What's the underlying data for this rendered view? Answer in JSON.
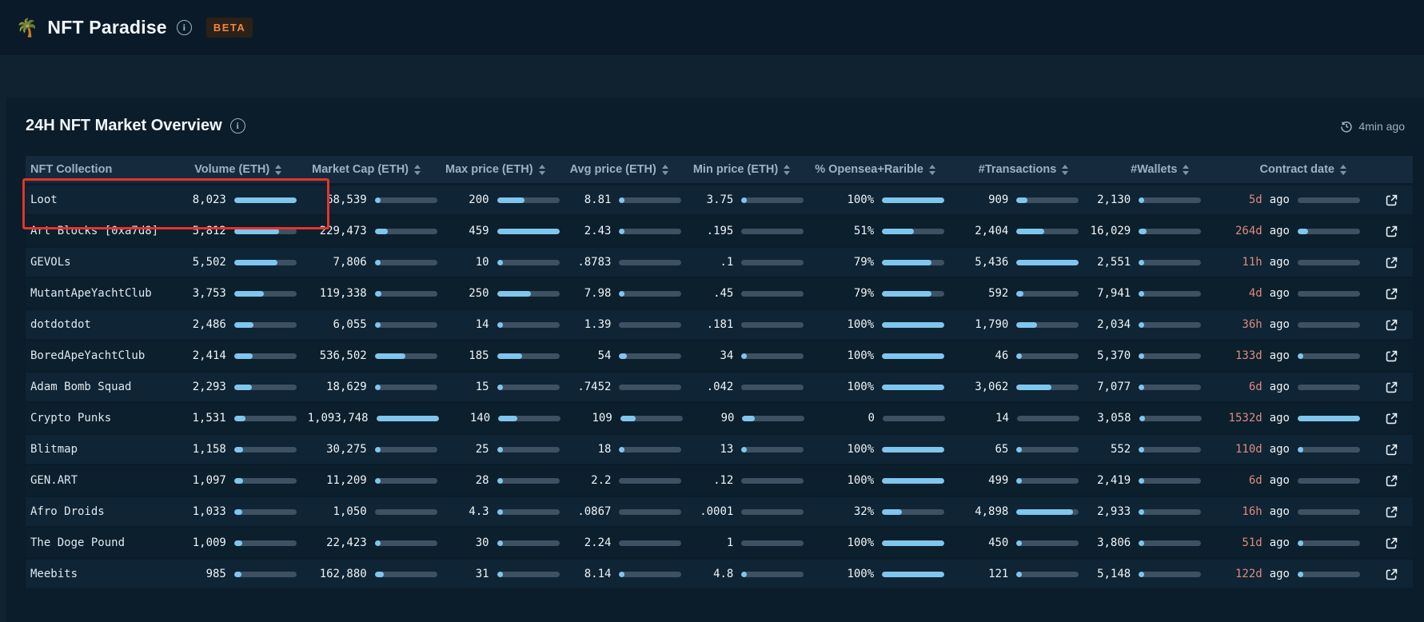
{
  "app": {
    "logo": "🌴",
    "title": "NFT Paradise",
    "beta_label": "BETA"
  },
  "panel": {
    "title": "24H NFT Market Overview",
    "updated": "4min ago"
  },
  "colors": {
    "page_bg": "#10212f",
    "topbar_bg": "#0b1a28",
    "card_bg": "#0b1c2a",
    "header_bg": "#152a3c",
    "row_odd": "#0f2434",
    "row_even": "#0c1f2c",
    "bar_fill": "#7fc6ee",
    "bar_track": "#3d5162",
    "header_text": "#9db2c3",
    "value_text": "#eef4f8",
    "name_text": "#dfe9f1",
    "date_red": "#de8a80",
    "accent_red": "#e5342b",
    "beta_text": "#ef8640",
    "beta_bg": "#2b2118"
  },
  "table": {
    "columns": [
      {
        "key": "name",
        "label": "NFT Collection",
        "sortable": false
      },
      {
        "key": "volume",
        "label": "Volume (ETH)",
        "sortable": true
      },
      {
        "key": "market_cap",
        "label": "Market Cap (ETH)",
        "sortable": true
      },
      {
        "key": "max_price",
        "label": "Max price (ETH)",
        "sortable": true
      },
      {
        "key": "avg_price",
        "label": "Avg price (ETH)",
        "sortable": true
      },
      {
        "key": "min_price",
        "label": "Min price (ETH)",
        "sortable": true
      },
      {
        "key": "opensea_rarible",
        "label": "% Opensea+Rarible",
        "sortable": true
      },
      {
        "key": "transactions",
        "label": "#Transactions",
        "sortable": true
      },
      {
        "key": "wallets",
        "label": "#Wallets",
        "sortable": true
      },
      {
        "key": "contract_date",
        "label": "Contract date",
        "sortable": true
      }
    ],
    "metric_keys": [
      "volume",
      "market_cap",
      "max_price",
      "avg_price",
      "min_price",
      "opensea_rarible",
      "transactions",
      "wallets"
    ],
    "rows": [
      {
        "name": "Loot",
        "volume": {
          "v": "8,023",
          "bar": 100
        },
        "market_cap": {
          "v": "68,539",
          "bar": 6
        },
        "max_price": {
          "v": "200",
          "bar": 44
        },
        "avg_price": {
          "v": "8.81",
          "bar": 2
        },
        "min_price": {
          "v": "3.75",
          "bar": 1
        },
        "opensea_rarible": {
          "v": "100%",
          "bar": 100
        },
        "transactions": {
          "v": "909",
          "bar": 17
        },
        "wallets": {
          "v": "2,130",
          "bar": 2
        },
        "contract_date": {
          "v": "5d",
          "word": "ago",
          "bar": 0
        }
      },
      {
        "name": "Art Blocks [0xa7d8]",
        "volume": {
          "v": "5,812",
          "bar": 72
        },
        "market_cap": {
          "v": "229,473",
          "bar": 21
        },
        "max_price": {
          "v": "459",
          "bar": 100
        },
        "avg_price": {
          "v": "2.43",
          "bar": 1
        },
        "min_price": {
          "v": ".195",
          "bar": 0
        },
        "opensea_rarible": {
          "v": "51%",
          "bar": 51
        },
        "transactions": {
          "v": "2,404",
          "bar": 44
        },
        "wallets": {
          "v": "16,029",
          "bar": 12
        },
        "contract_date": {
          "v": "264d",
          "word": "ago",
          "bar": 17
        }
      },
      {
        "name": "GEVOLs",
        "volume": {
          "v": "5,502",
          "bar": 69
        },
        "market_cap": {
          "v": "7,806",
          "bar": 1
        },
        "max_price": {
          "v": "10",
          "bar": 2
        },
        "avg_price": {
          "v": ".8783",
          "bar": 0
        },
        "min_price": {
          "v": ".1",
          "bar": 0
        },
        "opensea_rarible": {
          "v": "79%",
          "bar": 79
        },
        "transactions": {
          "v": "5,436",
          "bar": 100
        },
        "wallets": {
          "v": "2,551",
          "bar": 2
        },
        "contract_date": {
          "v": "11h",
          "word": "ago",
          "bar": 0
        }
      },
      {
        "name": "MutantApeYachtClub",
        "volume": {
          "v": "3,753",
          "bar": 47
        },
        "market_cap": {
          "v": "119,338",
          "bar": 11
        },
        "max_price": {
          "v": "250",
          "bar": 54
        },
        "avg_price": {
          "v": "7.98",
          "bar": 2
        },
        "min_price": {
          "v": ".45",
          "bar": 0
        },
        "opensea_rarible": {
          "v": "79%",
          "bar": 79
        },
        "transactions": {
          "v": "592",
          "bar": 11
        },
        "wallets": {
          "v": "7,941",
          "bar": 6
        },
        "contract_date": {
          "v": "4d",
          "word": "ago",
          "bar": 0
        }
      },
      {
        "name": "dotdotdot",
        "volume": {
          "v": "2,486",
          "bar": 31
        },
        "market_cap": {
          "v": "6,055",
          "bar": 1
        },
        "max_price": {
          "v": "14",
          "bar": 3
        },
        "avg_price": {
          "v": "1.39",
          "bar": 0
        },
        "min_price": {
          "v": ".181",
          "bar": 0
        },
        "opensea_rarible": {
          "v": "100%",
          "bar": 100
        },
        "transactions": {
          "v": "1,790",
          "bar": 33
        },
        "wallets": {
          "v": "2,034",
          "bar": 2
        },
        "contract_date": {
          "v": "36h",
          "word": "ago",
          "bar": 0
        }
      },
      {
        "name": "BoredApeYachtClub",
        "volume": {
          "v": "2,414",
          "bar": 30
        },
        "market_cap": {
          "v": "536,502",
          "bar": 49
        },
        "max_price": {
          "v": "185",
          "bar": 40
        },
        "avg_price": {
          "v": "54",
          "bar": 12
        },
        "min_price": {
          "v": "34",
          "bar": 7
        },
        "opensea_rarible": {
          "v": "100%",
          "bar": 100
        },
        "transactions": {
          "v": "46",
          "bar": 1
        },
        "wallets": {
          "v": "5,370",
          "bar": 4
        },
        "contract_date": {
          "v": "133d",
          "word": "ago",
          "bar": 9
        }
      },
      {
        "name": "Adam Bomb Squad",
        "volume": {
          "v": "2,293",
          "bar": 29
        },
        "market_cap": {
          "v": "18,629",
          "bar": 2
        },
        "max_price": {
          "v": "15",
          "bar": 3
        },
        "avg_price": {
          "v": ".7452",
          "bar": 0
        },
        "min_price": {
          "v": ".042",
          "bar": 0
        },
        "opensea_rarible": {
          "v": "100%",
          "bar": 100
        },
        "transactions": {
          "v": "3,062",
          "bar": 56
        },
        "wallets": {
          "v": "7,077",
          "bar": 5
        },
        "contract_date": {
          "v": "6d",
          "word": "ago",
          "bar": 0
        }
      },
      {
        "name": "Crypto Punks",
        "volume": {
          "v": "1,531",
          "bar": 19
        },
        "market_cap": {
          "v": "1,093,748",
          "bar": 100
        },
        "max_price": {
          "v": "140",
          "bar": 31
        },
        "avg_price": {
          "v": "109",
          "bar": 24
        },
        "min_price": {
          "v": "90",
          "bar": 20
        },
        "opensea_rarible": {
          "v": "0",
          "bar": 0
        },
        "transactions": {
          "v": "14",
          "bar": 0
        },
        "wallets": {
          "v": "3,058",
          "bar": 2
        },
        "contract_date": {
          "v": "1532d",
          "word": "ago",
          "bar": 100
        }
      },
      {
        "name": "Blitmap",
        "volume": {
          "v": "1,158",
          "bar": 14
        },
        "market_cap": {
          "v": "30,275",
          "bar": 3
        },
        "max_price": {
          "v": "25",
          "bar": 5
        },
        "avg_price": {
          "v": "18",
          "bar": 4
        },
        "min_price": {
          "v": "13",
          "bar": 3
        },
        "opensea_rarible": {
          "v": "100%",
          "bar": 100
        },
        "transactions": {
          "v": "65",
          "bar": 1
        },
        "wallets": {
          "v": "552",
          "bar": 1
        },
        "contract_date": {
          "v": "110d",
          "word": "ago",
          "bar": 7
        }
      },
      {
        "name": "GEN.ART",
        "volume": {
          "v": "1,097",
          "bar": 14
        },
        "market_cap": {
          "v": "11,209",
          "bar": 1
        },
        "max_price": {
          "v": "28",
          "bar": 6
        },
        "avg_price": {
          "v": "2.2",
          "bar": 0
        },
        "min_price": {
          "v": ".12",
          "bar": 0
        },
        "opensea_rarible": {
          "v": "100%",
          "bar": 100
        },
        "transactions": {
          "v": "499",
          "bar": 9
        },
        "wallets": {
          "v": "2,419",
          "bar": 2
        },
        "contract_date": {
          "v": "6d",
          "word": "ago",
          "bar": 0
        }
      },
      {
        "name": "Afro Droids",
        "volume": {
          "v": "1,033",
          "bar": 13
        },
        "market_cap": {
          "v": "1,050",
          "bar": 0
        },
        "max_price": {
          "v": "4.3",
          "bar": 1
        },
        "avg_price": {
          "v": ".0867",
          "bar": 0
        },
        "min_price": {
          "v": ".0001",
          "bar": 0
        },
        "opensea_rarible": {
          "v": "32%",
          "bar": 32
        },
        "transactions": {
          "v": "4,898",
          "bar": 90
        },
        "wallets": {
          "v": "2,933",
          "bar": 2
        },
        "contract_date": {
          "v": "16h",
          "word": "ago",
          "bar": 0
        }
      },
      {
        "name": "The Doge Pound",
        "volume": {
          "v": "1,009",
          "bar": 13
        },
        "market_cap": {
          "v": "22,423",
          "bar": 2
        },
        "max_price": {
          "v": "30",
          "bar": 7
        },
        "avg_price": {
          "v": "2.24",
          "bar": 0
        },
        "min_price": {
          "v": "1",
          "bar": 0
        },
        "opensea_rarible": {
          "v": "100%",
          "bar": 100
        },
        "transactions": {
          "v": "450",
          "bar": 8
        },
        "wallets": {
          "v": "3,806",
          "bar": 3
        },
        "contract_date": {
          "v": "51d",
          "word": "ago",
          "bar": 3
        }
      },
      {
        "name": "Meebits",
        "volume": {
          "v": "985",
          "bar": 12
        },
        "market_cap": {
          "v": "162,880",
          "bar": 15
        },
        "max_price": {
          "v": "31",
          "bar": 7
        },
        "avg_price": {
          "v": "8.14",
          "bar": 2
        },
        "min_price": {
          "v": "4.8",
          "bar": 1
        },
        "opensea_rarible": {
          "v": "100%",
          "bar": 100
        },
        "transactions": {
          "v": "121",
          "bar": 2
        },
        "wallets": {
          "v": "5,148",
          "bar": 4
        },
        "contract_date": {
          "v": "122d",
          "word": "ago",
          "bar": 8
        }
      }
    ]
  }
}
